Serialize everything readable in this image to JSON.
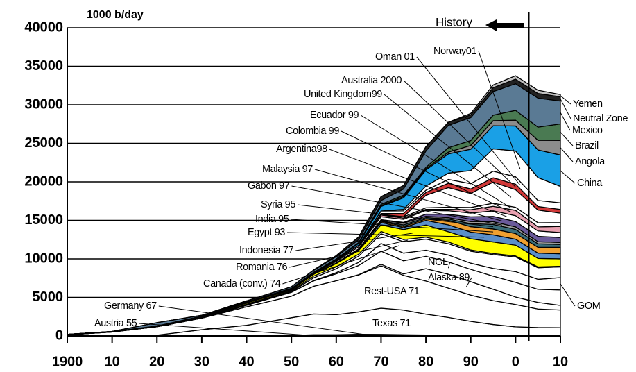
{
  "chart_data": {
    "type": "area",
    "stacked": true,
    "y_label": "1000 b/day",
    "annotation": {
      "text": "History",
      "x": 2003
    },
    "x": [
      1900,
      1910,
      1920,
      1930,
      1940,
      1950,
      1955,
      1960,
      1965,
      1970,
      1975,
      1980,
      1985,
      1990,
      1995,
      2000,
      2005,
      2010
    ],
    "xlim": [
      1900,
      2010
    ],
    "xticks": [
      1900,
      {
        "value": 1910,
        "label": "10"
      },
      {
        "value": 1920,
        "label": "20"
      },
      {
        "value": 1930,
        "label": "30"
      },
      {
        "value": 1940,
        "label": "40"
      },
      {
        "value": 1950,
        "label": "50"
      },
      {
        "value": 1960,
        "label": "60"
      },
      {
        "value": 1970,
        "label": "70"
      },
      {
        "value": 1980,
        "label": "80"
      },
      {
        "value": 1990,
        "label": "90"
      },
      {
        "value": 2000,
        "label": "0"
      },
      {
        "value": 2010,
        "label": "10"
      }
    ],
    "ylim": [
      0,
      40000
    ],
    "yticks": [
      0,
      5000,
      10000,
      15000,
      20000,
      25000,
      30000,
      35000,
      40000
    ],
    "grid": true,
    "series": [
      {
        "name": "Austria 55",
        "color": "#ffffff",
        "values": [
          0,
          0,
          0,
          0,
          20,
          30,
          70,
          50,
          55,
          55,
          40,
          30,
          22,
          23,
          20,
          20,
          18,
          16
        ]
      },
      {
        "name": "Germany 67",
        "color": "#6f94b8",
        "values": [
          0,
          0,
          0,
          5,
          60,
          30,
          80,
          110,
          160,
          150,
          120,
          95,
          80,
          70,
          60,
          60,
          70,
          50
        ]
      },
      {
        "name": "Texas 71",
        "color": "#ffffff",
        "values": [
          0,
          10,
          100,
          800,
          1300,
          2300,
          2700,
          2600,
          2900,
          3400,
          3200,
          2700,
          2300,
          1800,
          1400,
          1100,
          1000,
          1000
        ]
      },
      {
        "name": "Rest-USA 71",
        "color": "#ffffff",
        "values": [
          150,
          500,
          1100,
          1500,
          2400,
          2800,
          3600,
          4400,
          4800,
          5500,
          4500,
          4300,
          3800,
          3400,
          3100,
          2900,
          2400,
          2300
        ]
      },
      {
        "name": "Alaska 89",
        "color": "#ffffff",
        "values": [
          0,
          0,
          0,
          0,
          0,
          0,
          0,
          0,
          30,
          200,
          190,
          1600,
          1800,
          1750,
          1480,
          970,
          860,
          600
        ]
      },
      {
        "name": "NGL",
        "color": "#ffffff",
        "values": [
          0,
          0,
          0,
          0,
          200,
          500,
          700,
          900,
          1200,
          1700,
          1700,
          1600,
          1600,
          1600,
          1700,
          1900,
          1700,
          2000
        ]
      },
      {
        "name": "GOM",
        "color": "#ffffff",
        "values": [
          0,
          0,
          0,
          0,
          0,
          0,
          50,
          150,
          400,
          1000,
          1000,
          800,
          900,
          800,
          1000,
          1400,
          1300,
          1600
        ]
      },
      {
        "name": "Canada (conv.) 74",
        "color": "#ffffff",
        "values": [
          0,
          0,
          0,
          0,
          20,
          80,
          350,
          520,
          810,
          1260,
          1470,
          1440,
          1470,
          1550,
          1800,
          1900,
          1500,
          1400
        ]
      },
      {
        "name": "Romania 76",
        "color": "#ffffff",
        "values": [
          50,
          30,
          20,
          110,
          120,
          100,
          220,
          240,
          260,
          290,
          290,
          250,
          220,
          160,
          140,
          130,
          110,
          90
        ]
      },
      {
        "name": "Indonesia 77",
        "color": "#ffff00",
        "values": [
          0,
          30,
          50,
          90,
          150,
          130,
          240,
          420,
          480,
          850,
          1300,
          1580,
          1330,
          1460,
          1500,
          1400,
          1100,
          950
        ]
      },
      {
        "name": "Egypt 93",
        "color": "#5b8fc9",
        "values": [
          0,
          0,
          0,
          5,
          20,
          50,
          40,
          60,
          120,
          330,
          240,
          600,
          890,
          870,
          920,
          780,
          690,
          660
        ]
      },
      {
        "name": "India 95",
        "color": "#f0a030",
        "values": [
          0,
          0,
          0,
          0,
          5,
          5,
          5,
          10,
          60,
          140,
          170,
          190,
          600,
          700,
          760,
          730,
          760,
          830
        ]
      },
      {
        "name": "Syria 95",
        "color": "#3c6e7a",
        "values": [
          0,
          0,
          0,
          0,
          0,
          0,
          0,
          0,
          0,
          80,
          190,
          170,
          170,
          390,
          590,
          540,
          450,
          380
        ]
      },
      {
        "name": "Gabon 97",
        "color": "#9a9a9a",
        "values": [
          0,
          0,
          0,
          0,
          0,
          0,
          0,
          15,
          25,
          110,
          225,
          175,
          170,
          270,
          365,
          330,
          270,
          250
        ]
      },
      {
        "name": "Malaysia 97",
        "color": "#6a5a9a",
        "values": [
          0,
          0,
          0,
          0,
          0,
          0,
          0,
          0,
          0,
          20,
          100,
          280,
          440,
          620,
          680,
          690,
          700,
          650
        ]
      },
      {
        "name": "Argentina98",
        "color": "#ffffff",
        "values": [
          0,
          0,
          20,
          30,
          60,
          70,
          90,
          180,
          270,
          390,
          400,
          490,
          460,
          480,
          720,
          760,
          700,
          650
        ]
      },
      {
        "name": "Colombia 99",
        "color": "#e8a0b0",
        "values": [
          0,
          0,
          0,
          30,
          70,
          90,
          110,
          150,
          200,
          220,
          160,
          130,
          180,
          440,
          590,
          690,
          530,
          790
        ]
      },
      {
        "name": "Ecuador 99",
        "color": "#ffffff",
        "values": [
          0,
          0,
          0,
          0,
          0,
          0,
          0,
          0,
          10,
          10,
          160,
          200,
          280,
          290,
          390,
          400,
          530,
          490
        ]
      },
      {
        "name": "United Kingdom99",
        "color": "#ffffff",
        "values": [
          0,
          0,
          0,
          0,
          0,
          0,
          0,
          0,
          0,
          0,
          20,
          1620,
          2530,
          1820,
          2750,
          2280,
          1650,
          1230
        ]
      },
      {
        "name": "Australia 2000",
        "color": "#d03838",
        "values": [
          0,
          0,
          0,
          0,
          0,
          0,
          0,
          0,
          10,
          180,
          420,
          380,
          570,
          580,
          560,
          720,
          460,
          480
        ]
      },
      {
        "name": "Oman 01",
        "color": "#ffffff",
        "values": [
          0,
          0,
          0,
          0,
          0,
          0,
          0,
          0,
          0,
          330,
          340,
          280,
          500,
          690,
          860,
          960,
          780,
          860
        ]
      },
      {
        "name": "Norway01",
        "color": "#ffffff",
        "values": [
          0,
          0,
          0,
          0,
          0,
          0,
          0,
          0,
          0,
          0,
          190,
          530,
          820,
          1700,
          2900,
          3350,
          2970,
          2140
        ]
      },
      {
        "name": "China",
        "color": "#1aa0e6",
        "values": [
          0,
          0,
          0,
          0,
          0,
          0,
          20,
          100,
          230,
          600,
          1500,
          2100,
          2500,
          2770,
          3000,
          3250,
          3600,
          4070
        ]
      },
      {
        "name": "Angola",
        "color": "#8c8c8c",
        "values": [
          0,
          0,
          0,
          0,
          0,
          0,
          0,
          0,
          10,
          100,
          160,
          150,
          230,
          480,
          650,
          750,
          1250,
          1900
        ]
      },
      {
        "name": "Brazil",
        "color": "#4a7a52",
        "values": [
          0,
          0,
          0,
          0,
          0,
          0,
          10,
          80,
          100,
          170,
          180,
          190,
          560,
          650,
          720,
          1270,
          1710,
          2140
        ]
      },
      {
        "name": "Mexico",
        "color": "#5a7a94",
        "values": [
          0,
          10,
          430,
          110,
          120,
          200,
          250,
          300,
          360,
          490,
          800,
          2130,
          2910,
          2980,
          3070,
          3450,
          3760,
          2960
        ]
      },
      {
        "name": "Neutral Zone",
        "color": "#222222",
        "values": [
          0,
          0,
          0,
          0,
          0,
          0,
          50,
          140,
          360,
          500,
          450,
          550,
          400,
          350,
          500,
          600,
          600,
          550
        ]
      },
      {
        "name": "Yemen",
        "color": "#c0c0c0",
        "values": [
          0,
          0,
          0,
          0,
          0,
          0,
          0,
          0,
          0,
          0,
          0,
          0,
          10,
          190,
          350,
          440,
          420,
          290
        ]
      }
    ]
  }
}
